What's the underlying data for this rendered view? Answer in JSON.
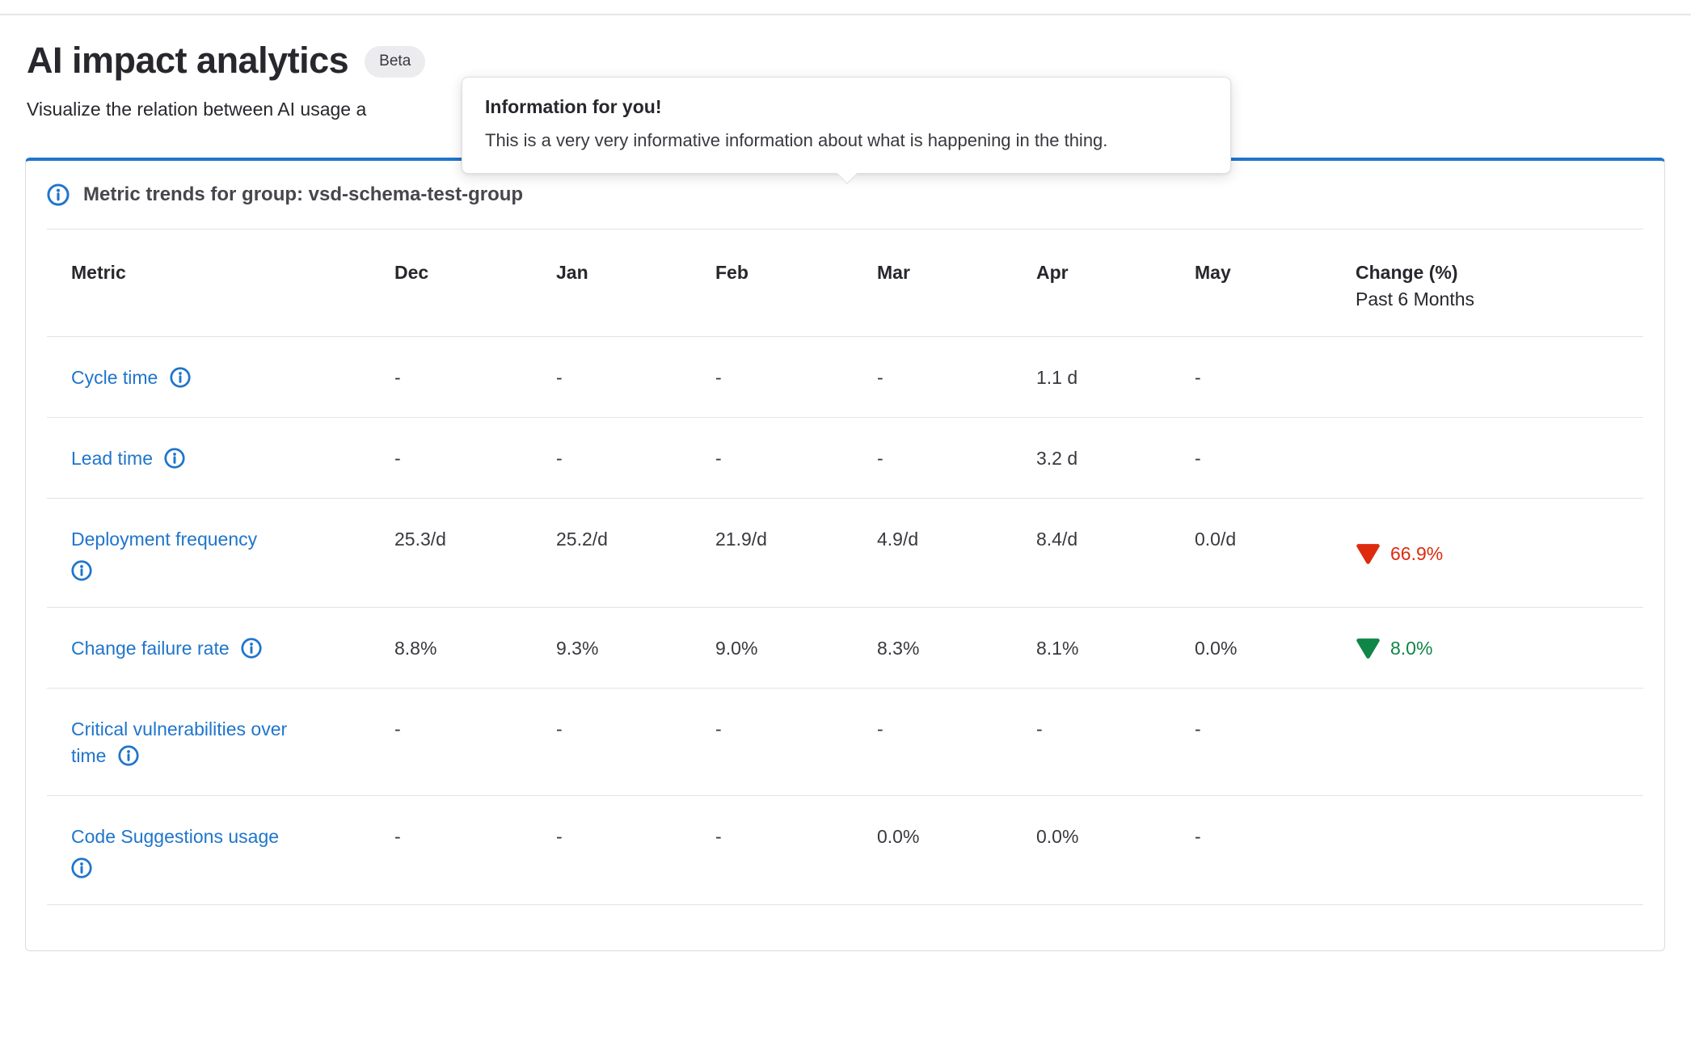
{
  "page": {
    "title": "AI impact analytics",
    "beta_badge": "Beta",
    "subtitle": "Visualize the relation between AI usage a"
  },
  "tooltip": {
    "title": "Information for you!",
    "body": "This is a very very informative information about what is happening in the thing."
  },
  "card": {
    "header": "Metric trends for group: vsd-schema-test-group",
    "header_icon": "information-o-icon"
  },
  "table": {
    "columns": [
      "Metric",
      "Dec",
      "Jan",
      "Feb",
      "Mar",
      "Apr",
      "May",
      "Change (%)"
    ],
    "change_subheader": "Past 6 Months",
    "rows": [
      {
        "metric": "Cycle time",
        "icon": "information-o-icon",
        "icon_inline": true,
        "values": [
          "-",
          "-",
          "-",
          "-",
          "1.1 d",
          "-"
        ],
        "change": null
      },
      {
        "metric": "Lead time",
        "icon": "information-o-icon",
        "icon_inline": true,
        "values": [
          "-",
          "-",
          "-",
          "-",
          "3.2 d",
          "-"
        ],
        "change": null
      },
      {
        "metric": "Deployment frequency",
        "icon": "information-o-icon",
        "icon_inline": false,
        "values": [
          "25.3/d",
          "25.2/d",
          "21.9/d",
          "4.9/d",
          "8.4/d",
          "0.0/d"
        ],
        "change": {
          "direction": "down",
          "value": "66.9%",
          "sentiment": "negative"
        }
      },
      {
        "metric": "Change failure rate",
        "icon": "information-o-icon",
        "icon_inline": true,
        "values": [
          "8.8%",
          "9.3%",
          "9.0%",
          "8.3%",
          "8.1%",
          "0.0%"
        ],
        "change": {
          "direction": "down",
          "value": "8.0%",
          "sentiment": "positive"
        }
      },
      {
        "metric": "Critical vulnerabilities over time",
        "icon": "information-o-icon",
        "icon_inline": true,
        "values": [
          "-",
          "-",
          "-",
          "-",
          "-",
          "-"
        ],
        "change": null
      },
      {
        "metric": "Code Suggestions usage",
        "icon": "information-o-icon",
        "icon_inline": false,
        "values": [
          "-",
          "-",
          "-",
          "0.0%",
          "0.0%",
          "-"
        ],
        "change": null
      }
    ]
  },
  "colors": {
    "accent_blue": "#1f75cb",
    "link_blue": "#1f75cb",
    "negative_red": "#dd2b0e",
    "positive_green": "#108548",
    "badge_bg": "#ececef",
    "divider": "#e3e3e6"
  }
}
